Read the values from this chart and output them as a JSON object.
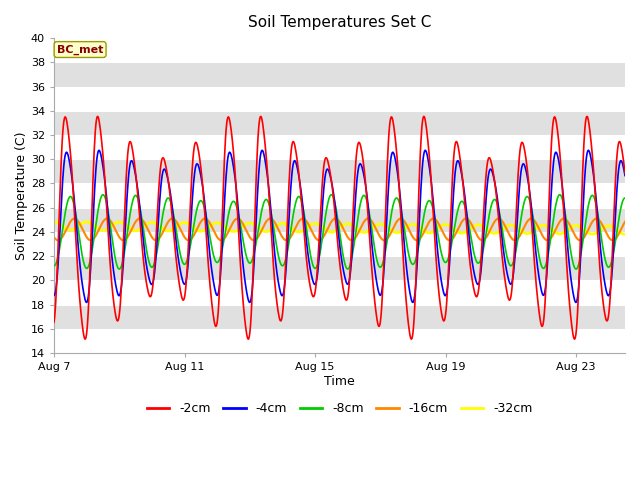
{
  "title": "Soil Temperatures Set C",
  "xlabel": "Time",
  "ylabel": "Soil Temperature (C)",
  "annotation": "BC_met",
  "ylim": [
    14,
    40
  ],
  "xlim_days": [
    0,
    17.5
  ],
  "xtick_positions": [
    0,
    4,
    8,
    12,
    16
  ],
  "xtick_labels": [
    "Aug 7",
    "Aug 11",
    "Aug 15",
    "Aug 19",
    "Aug 23"
  ],
  "yticks": [
    14,
    16,
    18,
    20,
    22,
    24,
    26,
    28,
    30,
    32,
    34,
    36,
    38,
    40
  ],
  "series": [
    {
      "label": "-2cm",
      "color": "#ff0000",
      "lw": 1.2,
      "zorder": 5
    },
    {
      "label": "-4cm",
      "color": "#0000ff",
      "lw": 1.2,
      "zorder": 4
    },
    {
      "label": "-8cm",
      "color": "#00cc00",
      "lw": 1.2,
      "zorder": 3
    },
    {
      "label": "-16cm",
      "color": "#ff8800",
      "lw": 1.5,
      "zorder": 2
    },
    {
      "label": "-32cm",
      "color": "#ffff00",
      "lw": 2.0,
      "zorder": 1
    }
  ],
  "fig_bg": "#ffffff",
  "plot_bg": "#e8e8e8",
  "grid_color": "#ffffff",
  "n_points": 1000,
  "total_days": 17.5,
  "period_hours": 24.0,
  "mean_2cm": 24.5,
  "mean_4cm": 24.5,
  "mean_8cm": 24.0,
  "mean_16cm": 24.2,
  "mean_32cm": 24.5,
  "amp_2cm_base": 7.5,
  "amp_4cm_base": 5.5,
  "amp_8cm_base": 2.8,
  "amp_16cm_base": 0.9,
  "amp_32cm_base": 0.35,
  "phase_2cm": 3.5,
  "phase_4cm": 4.5,
  "phase_8cm": 6.0,
  "phase_16cm": 9.0,
  "phase_32cm": 18.0,
  "sharpness_2cm": 3.0,
  "sharpness_4cm": 2.0
}
